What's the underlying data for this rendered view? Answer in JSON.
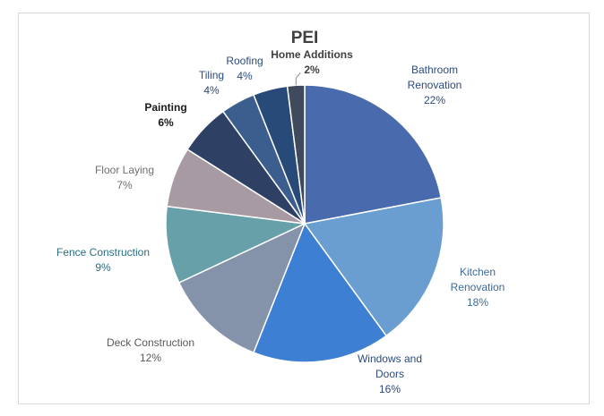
{
  "chart_data": {
    "type": "pie",
    "title": "PEI",
    "categories": [
      "Bathroom Renovation",
      "Kitchen Renovation",
      "Windows and Doors",
      "Deck Construction",
      "Fence Construction",
      "Floor Laying",
      "Painting",
      "Tiling",
      "Roofing",
      "Home Additions"
    ],
    "values": [
      22,
      18,
      16,
      12,
      9,
      7,
      6,
      4,
      4,
      2
    ],
    "value_labels": [
      "22%",
      "18%",
      "16%",
      "12%",
      "9%",
      "7%",
      "6%",
      "4%",
      "4%",
      "2%"
    ],
    "label_lines": [
      [
        "Bathroom",
        "Renovation",
        "22%"
      ],
      [
        "Kitchen",
        "Renovation",
        "18%"
      ],
      [
        "Windows and",
        "Doors",
        "16%"
      ],
      [
        "Deck Construction",
        "12%"
      ],
      [
        "Fence Construction",
        "9%"
      ],
      [
        "Floor Laying",
        "7%"
      ],
      [
        "Painting",
        "6%"
      ],
      [
        "Tiling",
        "4%"
      ],
      [
        "Roofing",
        "4%"
      ],
      [
        "Home Additions",
        "2%"
      ]
    ],
    "colors": [
      "#4a6aae",
      "#6b9ed0",
      "#3d7fd3",
      "#8593aa",
      "#67a0a8",
      "#a79aa3",
      "#2e4165",
      "#3b5e8f",
      "#284a79",
      "#3f4a5c"
    ],
    "label_colors": [
      "#2c4a7c",
      "#3e6a97",
      "#2c4a7c",
      "#595959",
      "#2e6d82",
      "#6f6f6f",
      "#1a1a1a",
      "#2c4a7c",
      "#2c4a7c",
      "#404040"
    ],
    "unit": "%",
    "legend": "none",
    "data_labels": "outside"
  }
}
